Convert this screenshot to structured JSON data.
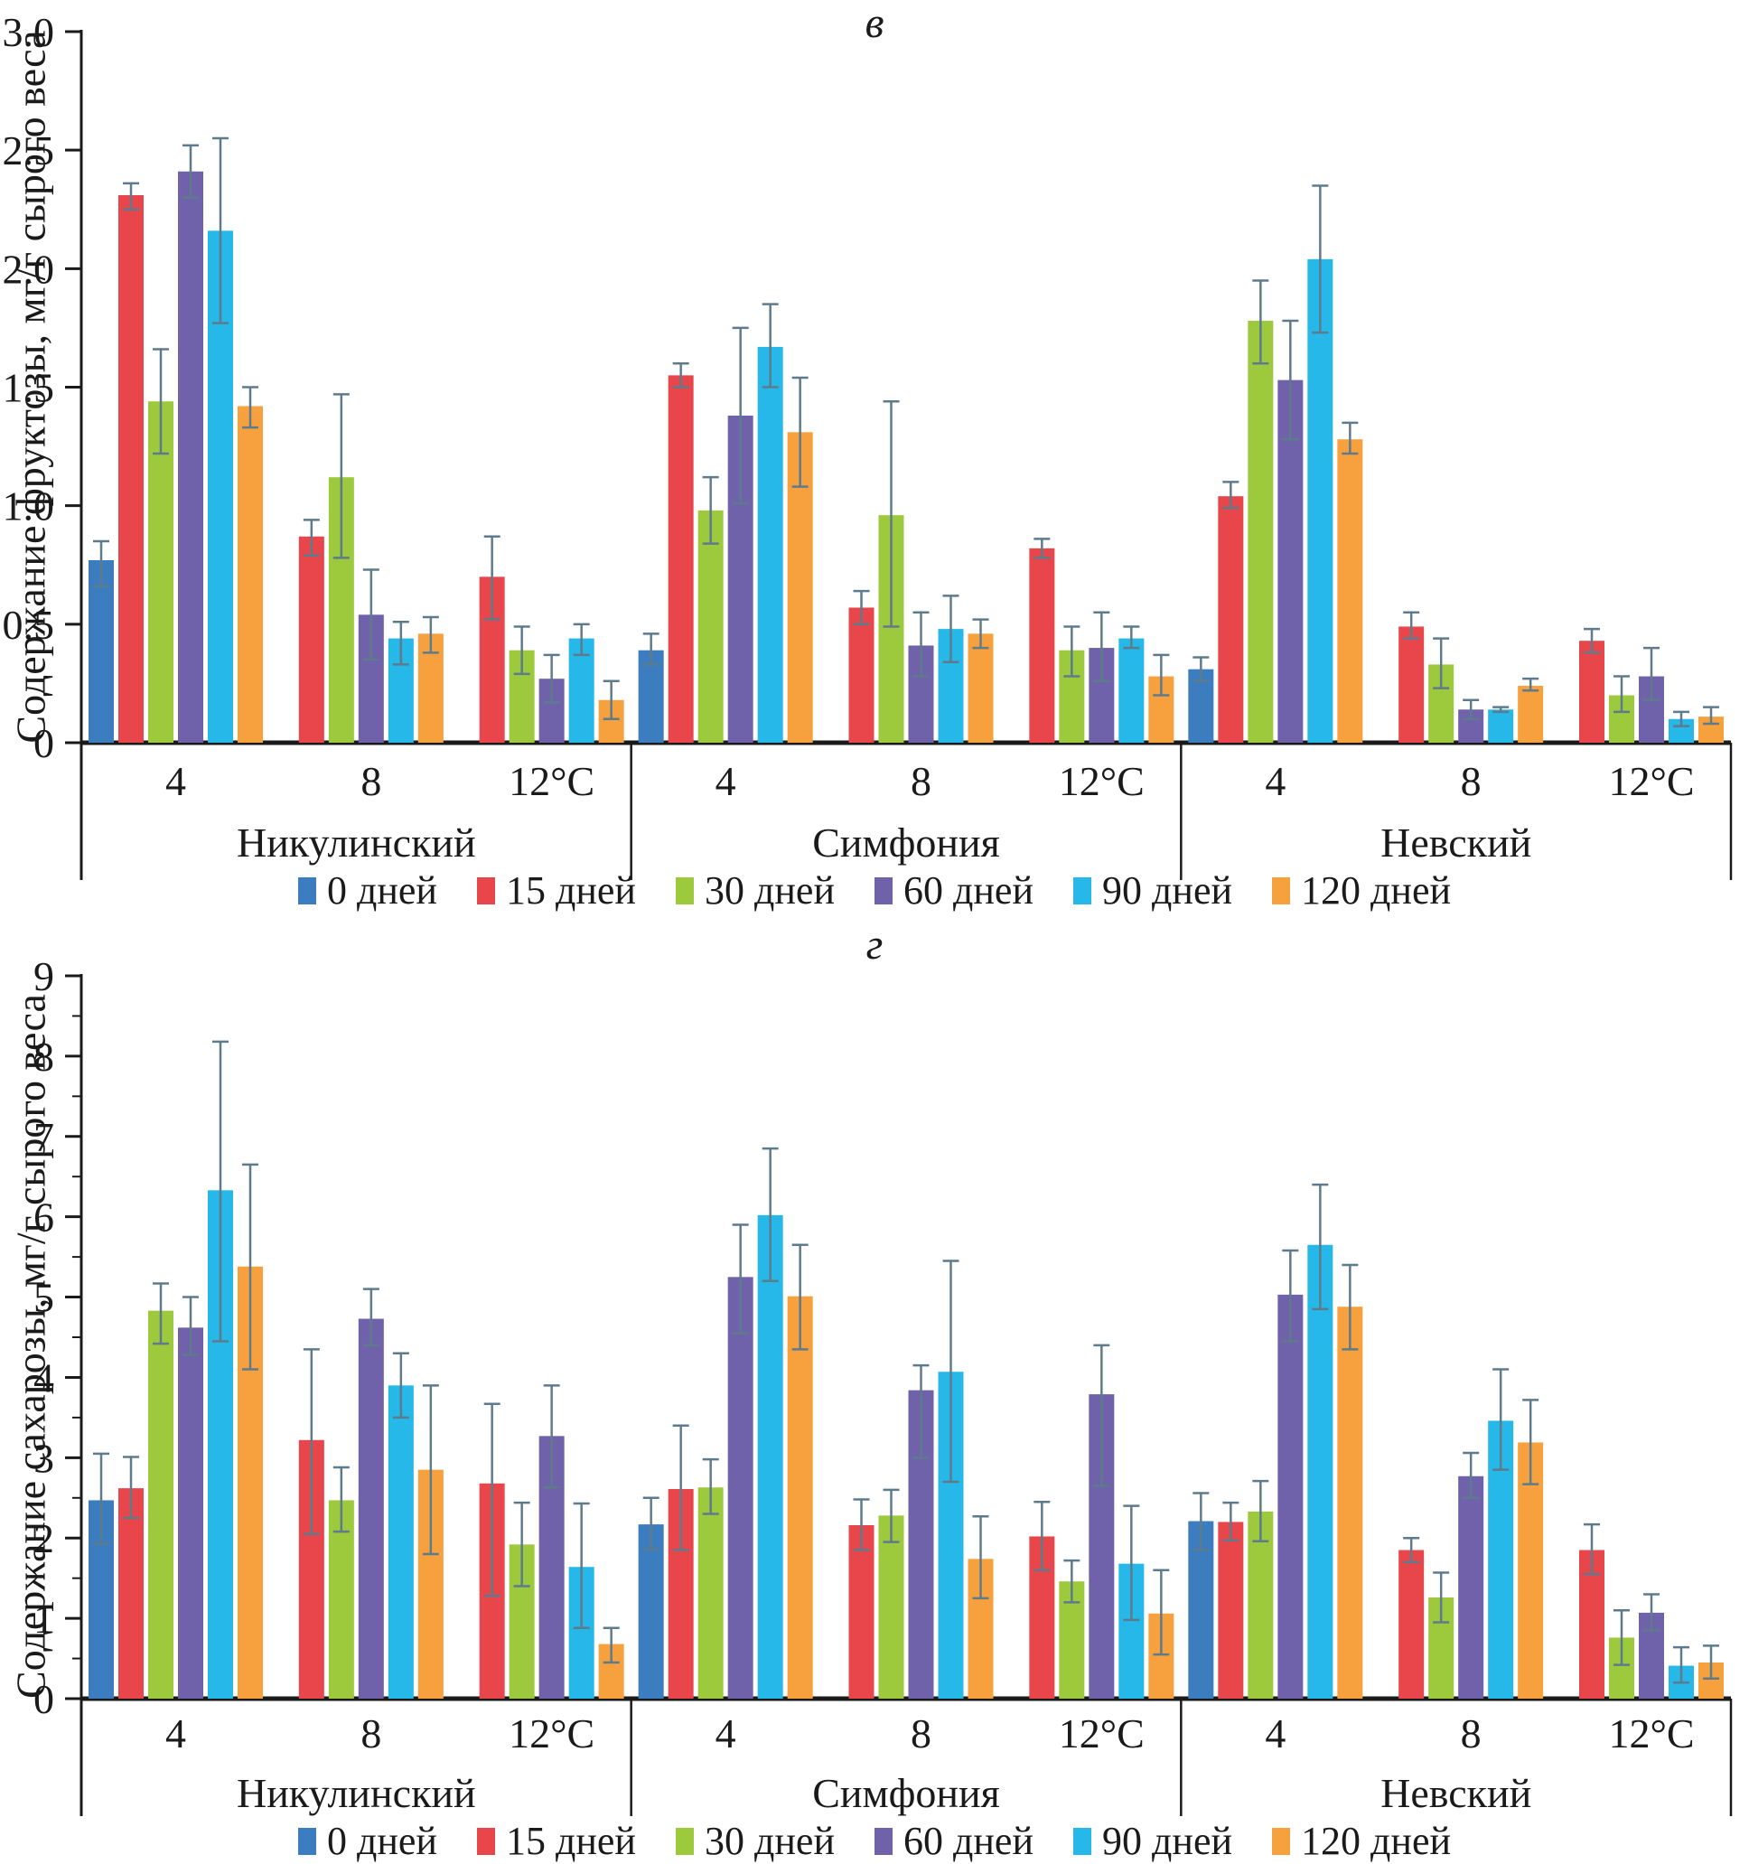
{
  "style": {
    "background": "#ffffff",
    "text_color": "#1a1a1a",
    "axis_color": "#1a1a1a",
    "error_bar_color": "#5e7b8c"
  },
  "chart_data": [
    {
      "type": "bar",
      "panel_label": "в",
      "ylabel": "Содержание фруктозы, мг/г сырого веса",
      "ylim": [
        0,
        3
      ],
      "grid": false,
      "legend_position": "bottom",
      "yticks": [
        0,
        0.5,
        1.0,
        1.5,
        2.0,
        2.5,
        3.0
      ],
      "ytick_labels": [
        "0",
        "0.5",
        "1.0",
        "1.5",
        "2.0",
        "2.5",
        "3.0"
      ],
      "yticks_minor": [],
      "series": [
        {
          "name": "0 дней",
          "color": "#3c7dc0"
        },
        {
          "name": "15 дней",
          "color": "#e9464b"
        },
        {
          "name": "30 дней",
          "color": "#9dc93d"
        },
        {
          "name": "60 дней",
          "color": "#7061ab"
        },
        {
          "name": "90 дней",
          "color": "#26b8e9"
        },
        {
          "name": "120 дней",
          "color": "#f7a13e"
        }
      ],
      "groups": [
        {
          "name": "Никулинский",
          "temps": [
            {
              "label": "4",
              "values": [
                0.77,
                2.31,
                1.44,
                2.41,
                2.16,
                1.42
              ],
              "err_lo": [
                0.66,
                2.25,
                1.22,
                2.3,
                1.77,
                1.33
              ],
              "err_hi": [
                0.85,
                2.36,
                1.66,
                2.52,
                2.55,
                1.5
              ]
            },
            {
              "label": "8",
              "values": [
                null,
                0.87,
                1.12,
                0.54,
                0.44,
                0.46
              ],
              "err_lo": [
                null,
                0.79,
                0.78,
                0.35,
                0.33,
                0.38
              ],
              "err_hi": [
                null,
                0.94,
                1.47,
                0.73,
                0.51,
                0.53
              ]
            },
            {
              "label": "12°C",
              "values": [
                null,
                0.7,
                0.39,
                0.27,
                0.44,
                0.18
              ],
              "err_lo": [
                null,
                0.52,
                0.29,
                0.17,
                0.37,
                0.1
              ],
              "err_hi": [
                null,
                0.87,
                0.49,
                0.37,
                0.5,
                0.26
              ]
            }
          ]
        },
        {
          "name": "Симфония",
          "temps": [
            {
              "label": "4",
              "values": [
                0.39,
                1.55,
                0.98,
                1.38,
                1.67,
                1.31
              ],
              "err_lo": [
                0.33,
                1.5,
                0.84,
                1.01,
                1.5,
                1.08
              ],
              "err_hi": [
                0.46,
                1.6,
                1.12,
                1.75,
                1.85,
                1.54
              ]
            },
            {
              "label": "8",
              "values": [
                null,
                0.57,
                0.96,
                0.41,
                0.48,
                0.46
              ],
              "err_lo": [
                null,
                0.5,
                0.49,
                0.28,
                0.34,
                0.4
              ],
              "err_hi": [
                null,
                0.64,
                1.44,
                0.55,
                0.62,
                0.52
              ]
            },
            {
              "label": "12°C",
              "values": [
                null,
                0.82,
                0.39,
                0.4,
                0.44,
                0.28
              ],
              "err_lo": [
                null,
                0.78,
                0.28,
                0.26,
                0.4,
                0.2
              ],
              "err_hi": [
                null,
                0.86,
                0.49,
                0.55,
                0.49,
                0.37
              ]
            }
          ]
        },
        {
          "name": "Невский",
          "temps": [
            {
              "label": "4",
              "values": [
                0.31,
                1.04,
                1.78,
                1.53,
                2.04,
                1.28
              ],
              "err_lo": [
                0.26,
                0.99,
                1.6,
                1.28,
                1.73,
                1.22
              ],
              "err_hi": [
                0.36,
                1.1,
                1.95,
                1.78,
                2.35,
                1.35
              ]
            },
            {
              "label": "8",
              "values": [
                null,
                0.49,
                0.33,
                0.14,
                0.14,
                0.24
              ],
              "err_lo": [
                null,
                0.44,
                0.23,
                0.1,
                0.13,
                0.22
              ],
              "err_hi": [
                null,
                0.55,
                0.44,
                0.18,
                0.15,
                0.27
              ]
            },
            {
              "label": "12°C",
              "values": [
                null,
                0.43,
                0.2,
                0.28,
                0.1,
                0.11
              ],
              "err_lo": [
                null,
                0.38,
                0.13,
                0.18,
                0.07,
                0.08
              ],
              "err_hi": [
                null,
                0.48,
                0.28,
                0.4,
                0.13,
                0.15
              ]
            }
          ]
        }
      ]
    },
    {
      "type": "bar",
      "panel_label": "г",
      "ylabel": "Содержание сахарозы, мг/г сырого веса",
      "ylim": [
        0,
        9
      ],
      "grid": false,
      "legend_position": "bottom",
      "yticks": [
        0,
        1,
        2,
        3,
        4,
        5,
        6,
        7,
        8,
        9
      ],
      "ytick_labels": [
        "0",
        "1",
        "2",
        "3",
        "4",
        "5",
        "6",
        "7",
        "8",
        "9"
      ],
      "yticks_minor": [
        0.5,
        1.5,
        2.5,
        3.5,
        4.5,
        5.5,
        6.5,
        7.5,
        8.5
      ],
      "series": [
        {
          "name": "0 дней",
          "color": "#3c7dc0"
        },
        {
          "name": "15 дней",
          "color": "#e9464b"
        },
        {
          "name": "30 дней",
          "color": "#9dc93d"
        },
        {
          "name": "60 дней",
          "color": "#7061ab"
        },
        {
          "name": "90 дней",
          "color": "#26b8e9"
        },
        {
          "name": "120 дней",
          "color": "#f7a13e"
        }
      ],
      "groups": [
        {
          "name": "Никулинский",
          "temps": [
            {
              "label": "4",
              "values": [
                2.47,
                2.62,
                4.83,
                4.62,
                6.33,
                5.38
              ],
              "err_lo": [
                1.93,
                2.25,
                4.42,
                4.28,
                4.45,
                4.1
              ],
              "err_hi": [
                3.05,
                3.01,
                5.17,
                5.0,
                8.18,
                6.65
              ]
            },
            {
              "label": "8",
              "values": [
                null,
                3.22,
                2.47,
                4.73,
                3.9,
                2.85
              ],
              "err_lo": [
                null,
                2.05,
                2.08,
                4.4,
                3.5,
                1.8
              ],
              "err_hi": [
                null,
                4.35,
                2.88,
                5.1,
                4.3,
                3.9
              ]
            },
            {
              "label": "12°C",
              "values": [
                null,
                2.68,
                1.92,
                3.27,
                1.64,
                0.68
              ],
              "err_lo": [
                null,
                1.28,
                1.4,
                2.63,
                0.88,
                0.45
              ],
              "err_hi": [
                null,
                3.67,
                2.44,
                3.9,
                2.43,
                0.88
              ]
            }
          ]
        },
        {
          "name": "Симфония",
          "temps": [
            {
              "label": "4",
              "values": [
                2.17,
                2.61,
                2.63,
                5.25,
                6.02,
                5.01
              ],
              "err_lo": [
                1.86,
                1.85,
                2.3,
                4.55,
                5.2,
                4.35
              ],
              "err_hi": [
                2.5,
                3.4,
                2.98,
                5.9,
                6.85,
                5.65
              ]
            },
            {
              "label": "8",
              "values": [
                null,
                2.16,
                2.28,
                3.84,
                4.07,
                1.74
              ],
              "err_lo": [
                null,
                1.85,
                1.95,
                3.0,
                2.7,
                1.25
              ],
              "err_hi": [
                null,
                2.48,
                2.6,
                4.15,
                5.45,
                2.27
              ]
            },
            {
              "label": "12°C",
              "values": [
                null,
                2.02,
                1.46,
                3.79,
                1.68,
                1.06
              ],
              "err_lo": [
                null,
                1.6,
                1.2,
                2.65,
                0.98,
                0.55
              ],
              "err_hi": [
                null,
                2.45,
                1.72,
                4.4,
                2.4,
                1.6
              ]
            }
          ]
        },
        {
          "name": "Невский",
          "temps": [
            {
              "label": "4",
              "values": [
                2.21,
                2.2,
                2.33,
                5.03,
                5.65,
                4.88
              ],
              "err_lo": [
                1.85,
                1.97,
                1.96,
                4.45,
                4.85,
                4.35
              ],
              "err_hi": [
                2.56,
                2.44,
                2.71,
                5.58,
                6.4,
                5.4
              ]
            },
            {
              "label": "8",
              "values": [
                null,
                1.85,
                1.26,
                2.77,
                3.46,
                3.19
              ],
              "err_lo": [
                null,
                1.7,
                0.95,
                2.5,
                2.85,
                2.67
              ],
              "err_hi": [
                null,
                2.0,
                1.57,
                3.06,
                4.1,
                3.72
              ]
            },
            {
              "label": "12°C",
              "values": [
                null,
                1.85,
                0.76,
                1.07,
                0.41,
                0.45
              ],
              "err_lo": [
                null,
                1.55,
                0.42,
                0.85,
                0.2,
                0.25
              ],
              "err_hi": [
                null,
                2.17,
                1.1,
                1.3,
                0.64,
                0.66
              ]
            }
          ]
        }
      ]
    }
  ]
}
